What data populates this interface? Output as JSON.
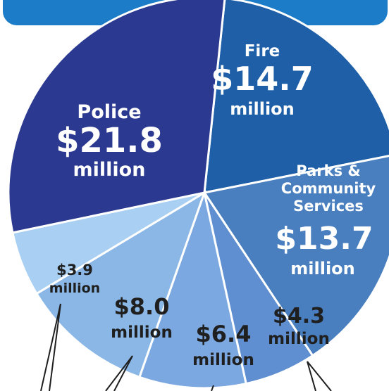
{
  "chart_data": {
    "type": "pie",
    "title": "",
    "unit": "million",
    "slices": [
      {
        "name": "Fire",
        "value": 14.7,
        "amount": "$14.7",
        "unit": "million",
        "color": "#1e5fa8",
        "text_color": "#ffffff"
      },
      {
        "name": "Parks & Community Services",
        "value": 13.7,
        "amount": "$13.7",
        "unit": "million",
        "color": "#4a7fbf",
        "text_color": "#ffffff"
      },
      {
        "name": "",
        "value": 4.3,
        "amount": "$4.3",
        "unit": "million",
        "color": "#5f8fd0",
        "text_color": "#1f1f1f"
      },
      {
        "name": "",
        "value": 6.4,
        "amount": "$6.4",
        "unit": "million",
        "color": "#7ba8e0",
        "text_color": "#1f1f1f"
      },
      {
        "name": "",
        "value": 8.0,
        "amount": "$8.0",
        "unit": "million",
        "color": "#8bb7e7",
        "text_color": "#1f1f1f"
      },
      {
        "name": "",
        "value": 3.9,
        "amount": "$3.9",
        "unit": "million",
        "color": "#a9d0f2",
        "text_color": "#1f1f1f"
      },
      {
        "name": "Police",
        "value": 21.8,
        "amount": "$21.8",
        "unit": "million",
        "color": "#2b3990",
        "text_color": "#ffffff"
      }
    ],
    "banner_color": "#1c7cc7",
    "leader_line_color": "#1f1f1f"
  }
}
